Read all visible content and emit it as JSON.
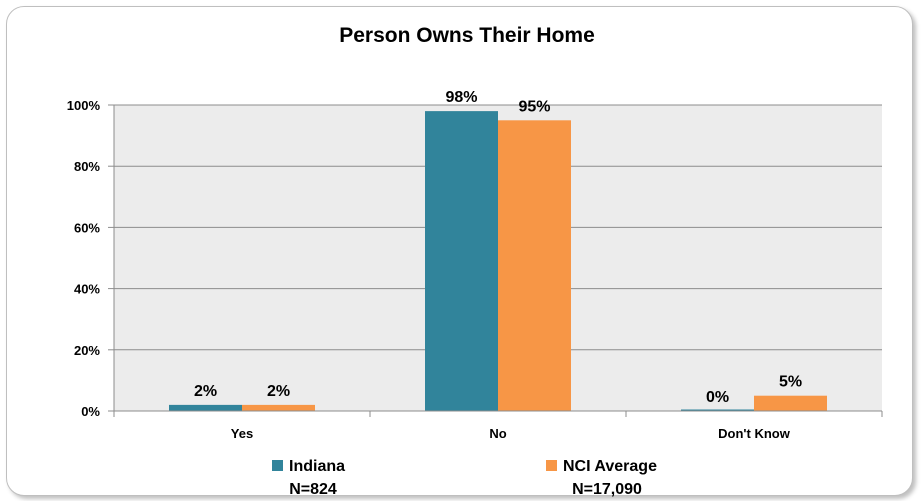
{
  "chart_data": {
    "type": "bar",
    "title": "Person Owns Their Home",
    "categories": [
      "Yes",
      "No",
      "Don't Know"
    ],
    "series": [
      {
        "name": "Indiana",
        "n_label": "N=824",
        "values": [
          2,
          98,
          0
        ],
        "labels": [
          "2%",
          "98%",
          "0%"
        ],
        "color": "#31849b"
      },
      {
        "name": "NCI Average",
        "n_label": "N=17,090",
        "values": [
          2,
          95,
          5
        ],
        "labels": [
          "2%",
          "95%",
          "5%"
        ],
        "color": "#f79646"
      }
    ],
    "ylim": [
      0,
      100
    ],
    "yticks": [
      0,
      20,
      40,
      60,
      80,
      100
    ],
    "ytick_labels": [
      "0%",
      "20%",
      "40%",
      "60%",
      "80%",
      "100%"
    ],
    "grid": true,
    "plot_background": "#ececec",
    "legend_position": "bottom"
  }
}
